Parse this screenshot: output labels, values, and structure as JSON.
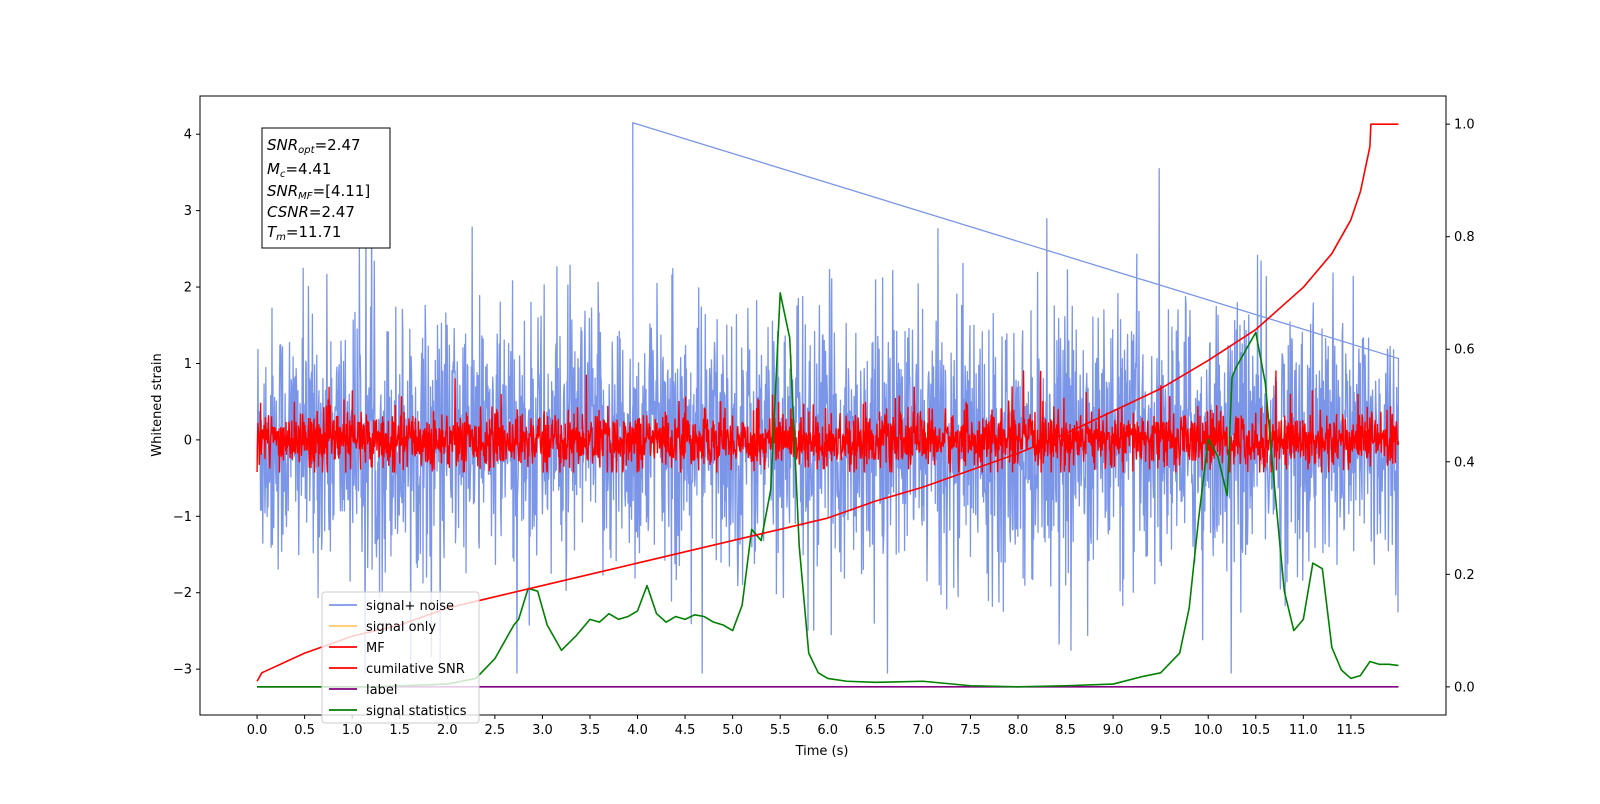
{
  "chart_data": {
    "type": "line",
    "xlabel": "Time (s)",
    "ylabel": "Whitened strain",
    "xlim": [
      -0.6,
      12.5
    ],
    "ylim": [
      -3.6,
      4.5
    ],
    "y2lim": [
      -0.05,
      1.05
    ],
    "grid": false,
    "legend_position": "lower-left",
    "x_ticks": [
      "0.0",
      "0.5",
      "1.0",
      "1.5",
      "2.0",
      "2.5",
      "3.0",
      "3.5",
      "4.0",
      "4.5",
      "5.0",
      "5.5",
      "6.0",
      "6.5",
      "7.0",
      "7.5",
      "8.0",
      "8.5",
      "9.0",
      "9.5",
      "10.0",
      "10.5",
      "11.0",
      "11.5"
    ],
    "y_ticks": [
      "−3",
      "−2",
      "−1",
      "0",
      "1",
      "2",
      "3",
      "4"
    ],
    "y2_ticks": [
      "0.0",
      "0.2",
      "0.4",
      "0.6",
      "0.8",
      "1.0"
    ],
    "info_box": {
      "snr_opt": {
        "sym": "SNR",
        "sub": "opt",
        "value": "=2.47"
      },
      "mc": {
        "sym": "M",
        "sub": "c",
        "value": "=4.41"
      },
      "snr_mf": {
        "sym": "SNR",
        "sub": "MF",
        "value": "=[4.11]"
      },
      "csnr": {
        "sym": "CSNR",
        "sub": "",
        "value": "=2.47"
      },
      "tm": {
        "sym": "T",
        "sub": "m",
        "value": "=11.71"
      }
    },
    "series": [
      {
        "name": "signal+ noise",
        "color": "#7b96e8",
        "axis": "left",
        "t_range": [
          0.0,
          12.0
        ],
        "approx_band": [
          -2.2,
          2.3
        ],
        "extremes": [
          -3.1,
          4.15
        ],
        "note_peak_time": 3.95
      },
      {
        "name": "signal only",
        "color": "#ffc966",
        "axis": "left",
        "values": "hidden beneath other traces"
      },
      {
        "name": "MF",
        "color": "#ff0000",
        "axis": "left",
        "t_range": [
          0.0,
          12.0
        ],
        "approx_band": [
          -0.4,
          0.45
        ],
        "extremes": [
          -0.6,
          0.9
        ]
      },
      {
        "name": "cumilative SNR",
        "color": "#ff0000",
        "axis": "right",
        "x": [
          0.0,
          0.05,
          0.5,
          1.0,
          1.5,
          2.0,
          2.5,
          3.0,
          3.5,
          4.0,
          4.5,
          5.0,
          5.5,
          6.0,
          6.5,
          7.0,
          7.5,
          8.0,
          8.5,
          9.0,
          9.5,
          10.0,
          10.5,
          11.0,
          11.3,
          11.5,
          11.6,
          11.7,
          11.71,
          12.0
        ],
        "y": [
          0.01,
          0.025,
          0.06,
          0.09,
          0.11,
          0.14,
          0.16,
          0.18,
          0.2,
          0.22,
          0.24,
          0.26,
          0.28,
          0.3,
          0.33,
          0.355,
          0.385,
          0.415,
          0.45,
          0.49,
          0.53,
          0.58,
          0.635,
          0.71,
          0.77,
          0.83,
          0.88,
          0.96,
          1.0,
          1.0
        ]
      },
      {
        "name": "label",
        "color": "#800080",
        "axis": "right",
        "x": [
          0.0,
          12.0
        ],
        "y": [
          0.0,
          0.0
        ]
      },
      {
        "name": "signal statistics",
        "color": "#008000",
        "axis": "right",
        "x": [
          0.0,
          1.2,
          2.0,
          2.3,
          2.5,
          2.7,
          2.75,
          2.85,
          2.95,
          3.05,
          3.2,
          3.35,
          3.5,
          3.6,
          3.7,
          3.8,
          3.9,
          4.0,
          4.1,
          4.2,
          4.3,
          4.4,
          4.5,
          4.6,
          4.7,
          4.8,
          4.9,
          5.0,
          5.1,
          5.2,
          5.25,
          5.3,
          5.4,
          5.5,
          5.6,
          5.7,
          5.8,
          5.9,
          6.0,
          6.2,
          6.5,
          7.0,
          7.5,
          8.0,
          8.5,
          9.0,
          9.3,
          9.5,
          9.7,
          9.8,
          9.9,
          10.0,
          10.1,
          10.2,
          10.25,
          10.3,
          10.4,
          10.5,
          10.6,
          10.7,
          10.8,
          10.9,
          11.0,
          11.1,
          11.2,
          11.3,
          11.4,
          11.5,
          11.6,
          11.7,
          11.8,
          11.9,
          12.0
        ],
        "y": [
          0.0,
          0.0,
          0.005,
          0.015,
          0.05,
          0.11,
          0.12,
          0.175,
          0.17,
          0.11,
          0.065,
          0.09,
          0.12,
          0.115,
          0.13,
          0.12,
          0.125,
          0.135,
          0.18,
          0.13,
          0.115,
          0.125,
          0.12,
          0.128,
          0.125,
          0.115,
          0.11,
          0.1,
          0.145,
          0.28,
          0.27,
          0.26,
          0.35,
          0.7,
          0.62,
          0.25,
          0.06,
          0.025,
          0.015,
          0.01,
          0.008,
          0.01,
          0.002,
          0.0,
          0.002,
          0.005,
          0.018,
          0.025,
          0.06,
          0.14,
          0.3,
          0.44,
          0.41,
          0.34,
          0.55,
          0.57,
          0.6,
          0.63,
          0.54,
          0.35,
          0.17,
          0.1,
          0.12,
          0.22,
          0.21,
          0.07,
          0.03,
          0.015,
          0.02,
          0.045,
          0.04,
          0.04,
          0.038
        ]
      }
    ]
  }
}
